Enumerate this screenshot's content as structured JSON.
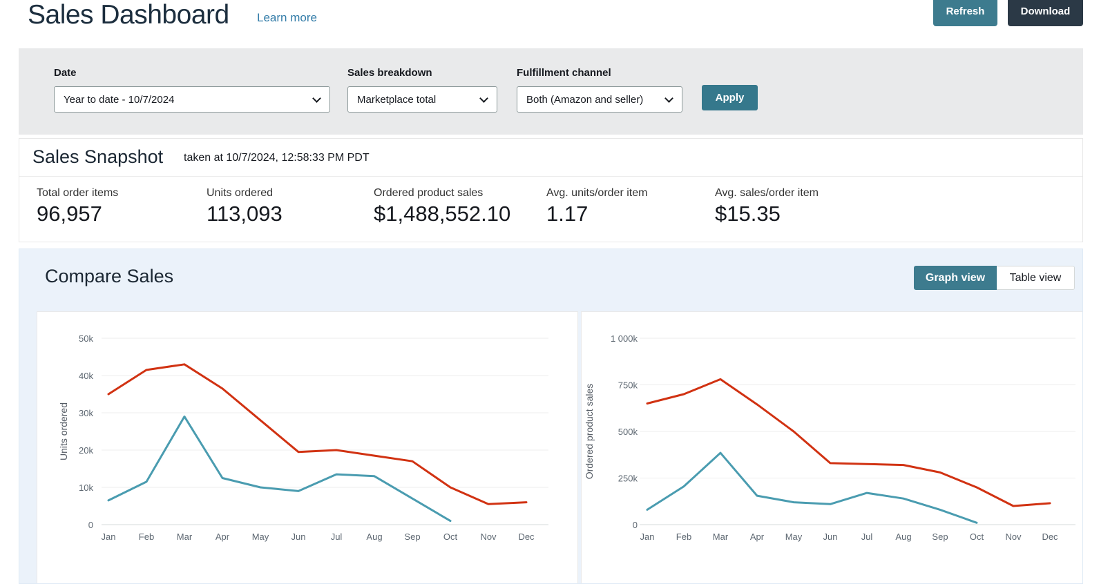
{
  "header": {
    "title": "Sales Dashboard",
    "learn_more": "Learn more",
    "refresh_label": "Refresh",
    "download_label": "Download"
  },
  "filters": {
    "date": {
      "label": "Date",
      "value": "Year to date - 10/7/2024"
    },
    "sales_breakdown": {
      "label": "Sales breakdown",
      "value": "Marketplace total"
    },
    "fulfillment_channel": {
      "label": "Fulfillment channel",
      "value": "Both (Amazon and seller)"
    },
    "apply_label": "Apply"
  },
  "snapshot": {
    "title": "Sales Snapshot",
    "taken_at": "taken at 10/7/2024, 12:58:33 PM PDT",
    "metrics": [
      {
        "label": "Total order items",
        "value": "96,957"
      },
      {
        "label": "Units ordered",
        "value": "113,093"
      },
      {
        "label": "Ordered product sales",
        "value": "$1,488,552.10"
      },
      {
        "label": "Avg. units/order item",
        "value": "1.17"
      },
      {
        "label": "Avg. sales/order item",
        "value": "$15.35"
      }
    ]
  },
  "compare": {
    "title": "Compare Sales",
    "graph_view_label": "Graph view",
    "table_view_label": "Table view"
  },
  "colors": {
    "accent_teal": "#3d7b8e",
    "dark_button": "#2b3946",
    "line_red": "#d13212",
    "line_teal": "#4a9cb0",
    "grid_line": "#ededed",
    "axis_line": "#d5dbdb",
    "section_background": "#ebf2fa"
  },
  "chart_data": [
    {
      "type": "line",
      "title": "",
      "xlabel": "",
      "ylabel": "Units ordered",
      "categories": [
        "Jan",
        "Feb",
        "Mar",
        "Apr",
        "May",
        "Jun",
        "Jul",
        "Aug",
        "Sep",
        "Oct",
        "Nov",
        "Dec"
      ],
      "ylim": [
        0,
        50000
      ],
      "yticks": [
        {
          "value": 0,
          "label": "0"
        },
        {
          "value": 10000,
          "label": "10k"
        },
        {
          "value": 20000,
          "label": "20k"
        },
        {
          "value": 30000,
          "label": "30k"
        },
        {
          "value": 40000,
          "label": "40k"
        },
        {
          "value": 50000,
          "label": "50k"
        }
      ],
      "grid": true,
      "legend": "none",
      "series": [
        {
          "name": "red-series",
          "color": "#d13212",
          "values": [
            35000,
            41500,
            43000,
            36500,
            28000,
            19500,
            20000,
            18500,
            17000,
            10000,
            5500,
            6000
          ]
        },
        {
          "name": "teal-series",
          "color": "#4a9cb0",
          "values": [
            6500,
            11500,
            29000,
            12500,
            10000,
            9000,
            13500,
            13000,
            7000,
            1000
          ]
        }
      ]
    },
    {
      "type": "line",
      "title": "",
      "xlabel": "",
      "ylabel": "Ordered product sales",
      "categories": [
        "Jan",
        "Feb",
        "Mar",
        "Apr",
        "May",
        "Jun",
        "Jul",
        "Aug",
        "Sep",
        "Oct",
        "Nov",
        "Dec"
      ],
      "ylim": [
        0,
        1000000
      ],
      "yticks": [
        {
          "value": 0,
          "label": "0"
        },
        {
          "value": 250000,
          "label": "250k"
        },
        {
          "value": 500000,
          "label": "500k"
        },
        {
          "value": 750000,
          "label": "750k"
        },
        {
          "value": 1000000,
          "label": "1 000k"
        }
      ],
      "grid": true,
      "legend": "none",
      "series": [
        {
          "name": "red-series",
          "color": "#d13212",
          "values": [
            650000,
            700000,
            780000,
            645000,
            500000,
            330000,
            325000,
            320000,
            280000,
            200000,
            100000,
            115000
          ]
        },
        {
          "name": "teal-series",
          "color": "#4a9cb0",
          "values": [
            80000,
            205000,
            385000,
            155000,
            120000,
            110000,
            170000,
            140000,
            80000,
            10000
          ]
        }
      ]
    }
  ]
}
